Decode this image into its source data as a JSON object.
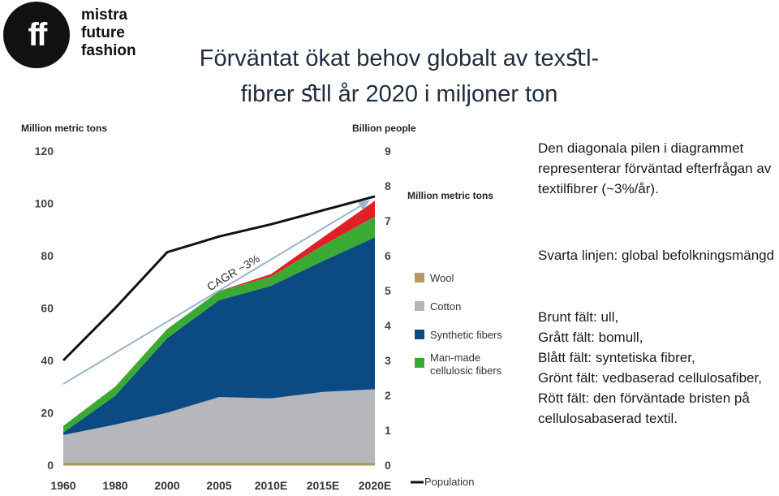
{
  "logo": {
    "mark": "ff",
    "lines": [
      "mistra",
      "future",
      "fashion"
    ]
  },
  "title": {
    "line1": "Förväntat ökat behov globalt av texﬆl-",
    "line2": "fibrer ﬆll år 2020 i miljoner ton"
  },
  "side": {
    "p1": "Den diagonala pilen i diagrammet representerar förväntad efterfrågan av textilfibrer (~3%/år).",
    "p2": "Svarta linjen: global befolkningsmängd",
    "p3": [
      "Brunt fält: ull,",
      "Grått fält: bomull,",
      "Blått fält: syntetiska fibrer,",
      "Grönt fält: vedbaserad cellulosafiber,",
      "Rött fält: den förväntade bristen på cellulosabaserad textil."
    ]
  },
  "chart_data": {
    "type": "area",
    "ylabel": "Million metric tons",
    "y2label": "Billion people",
    "categories": [
      "1960",
      "1980",
      "2000",
      "2005",
      "2010E",
      "2015E",
      "2020E"
    ],
    "ylim": [
      0,
      120
    ],
    "yticks": [
      0,
      20,
      40,
      60,
      80,
      100,
      120
    ],
    "y2lim": [
      0,
      9
    ],
    "y2ticks": [
      0,
      1,
      2,
      3,
      4,
      5,
      6,
      7,
      8,
      9
    ],
    "series": [
      {
        "name": "Wool",
        "color": "#b89a5c",
        "values": [
          1,
          1,
          1,
          1,
          1,
          1,
          1
        ]
      },
      {
        "name": "Cotton",
        "color": "#b5b7bc",
        "values": [
          10.5,
          14.5,
          19,
          25,
          24.5,
          27,
          28
        ]
      },
      {
        "name": "Synthetic fibers",
        "color": "#0b4a82",
        "values": [
          1,
          11,
          28.5,
          37,
          43,
          50,
          58
        ]
      },
      {
        "name": "Man-made cellulosic fibers",
        "color": "#3aaa35",
        "values": [
          2.5,
          3.5,
          3.5,
          3.5,
          3.5,
          6,
          8
        ]
      },
      {
        "name": "",
        "color": "#e31e24",
        "values": [
          0,
          0,
          0,
          0,
          1,
          3,
          6
        ]
      }
    ],
    "population": {
      "name": "Population",
      "color": "#111111",
      "values": [
        3.0,
        4.5,
        6.1,
        6.55,
        6.9,
        7.3,
        7.7
      ]
    },
    "cagr_line": {
      "label": "CAGR ~3%",
      "color": "#9bb3cc",
      "from": {
        "category": "1960",
        "value": 31
      },
      "to": {
        "category": "2020E",
        "value": 99
      }
    },
    "legend_title": "Million metric tons",
    "legend": [
      "Wool",
      "Cotton",
      "Synthetic fibers",
      "Man-made cellulosic fibers"
    ],
    "legend_population": "Population"
  }
}
